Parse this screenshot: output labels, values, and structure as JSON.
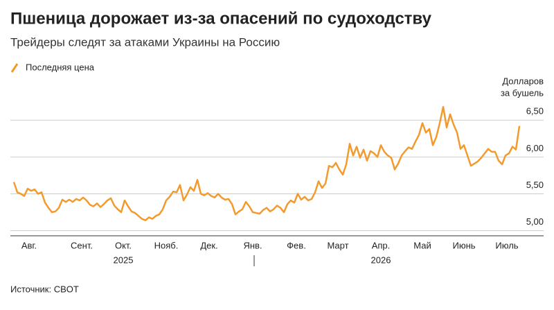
{
  "chart_data": {
    "type": "line",
    "title": "Пшеница дорожает из-за опасений по судоходству",
    "subtitle": "Трейдеры следят за атаками Украины на Россию",
    "y_axis_label": [
      "Долларов",
      "за бушель"
    ],
    "source": "Источник: CBOT",
    "series": [
      {
        "name": "Последняя цена",
        "color": "#f39a2c",
        "values": [
          5.66,
          5.52,
          5.5,
          5.47,
          5.57,
          5.54,
          5.56,
          5.5,
          5.52,
          5.38,
          5.31,
          5.25,
          5.26,
          5.31,
          5.42,
          5.39,
          5.42,
          5.39,
          5.43,
          5.41,
          5.45,
          5.41,
          5.35,
          5.33,
          5.37,
          5.32,
          5.36,
          5.41,
          5.44,
          5.34,
          5.29,
          5.25,
          5.41,
          5.33,
          5.26,
          5.24,
          5.2,
          5.16,
          5.14,
          5.18,
          5.16,
          5.2,
          5.22,
          5.29,
          5.41,
          5.46,
          5.53,
          5.52,
          5.62,
          5.41,
          5.49,
          5.59,
          5.54,
          5.69,
          5.5,
          5.48,
          5.51,
          5.47,
          5.45,
          5.5,
          5.45,
          5.42,
          5.43,
          5.36,
          5.22,
          5.26,
          5.29,
          5.39,
          5.33,
          5.25,
          5.24,
          5.23,
          5.28,
          5.31,
          5.26,
          5.29,
          5.34,
          5.31,
          5.25,
          5.36,
          5.41,
          5.38,
          5.5,
          5.42,
          5.46,
          5.41,
          5.43,
          5.52,
          5.67,
          5.58,
          5.64,
          5.88,
          5.86,
          5.92,
          5.83,
          5.76,
          5.9,
          6.18,
          6.02,
          6.14,
          5.99,
          6.1,
          5.95,
          6.08,
          6.05,
          6.0,
          6.16,
          6.07,
          6.02,
          5.99,
          5.83,
          5.91,
          6.02,
          6.08,
          6.13,
          6.11,
          6.21,
          6.3,
          6.46,
          6.33,
          6.38,
          6.16,
          6.27,
          6.46,
          6.68,
          6.4,
          6.58,
          6.44,
          6.33,
          6.11,
          6.16,
          6.02,
          5.88,
          5.91,
          5.94,
          5.99,
          6.05,
          6.11,
          6.07,
          6.07,
          5.95,
          5.9,
          6.02,
          6.05,
          6.14,
          6.1,
          6.42
        ]
      }
    ],
    "xlim": [
      0,
      145
    ],
    "xticks": [
      {
        "value": 4.4,
        "label": "Авг."
      },
      {
        "value": 19.6,
        "label": "Сент."
      },
      {
        "value": 31.6,
        "label": "Окт."
      },
      {
        "value": 44,
        "label": "Нояб."
      },
      {
        "value": 56.4,
        "label": "Дек."
      },
      {
        "value": 69,
        "label": "Янв."
      },
      {
        "value": 81.6,
        "label": "Фев."
      },
      {
        "value": 93.6,
        "label": "Март"
      },
      {
        "value": 106,
        "label": "Апр."
      },
      {
        "value": 118,
        "label": "Май"
      },
      {
        "value": 130,
        "label": "Июнь"
      },
      {
        "value": 142.4,
        "label": "Июль"
      }
    ],
    "year_labels": [
      {
        "value": 31.6,
        "label": "2025"
      },
      {
        "value": 106,
        "label": "2026"
      }
    ],
    "ylim": [
      4.93,
      6.7
    ],
    "yticks": [
      {
        "value": 5,
        "label": "5,00"
      },
      {
        "value": 5.5,
        "label": "5,50"
      },
      {
        "value": 6,
        "label": "6,00"
      },
      {
        "value": 6.5,
        "label": "6,50"
      }
    ],
    "grid": true
  }
}
